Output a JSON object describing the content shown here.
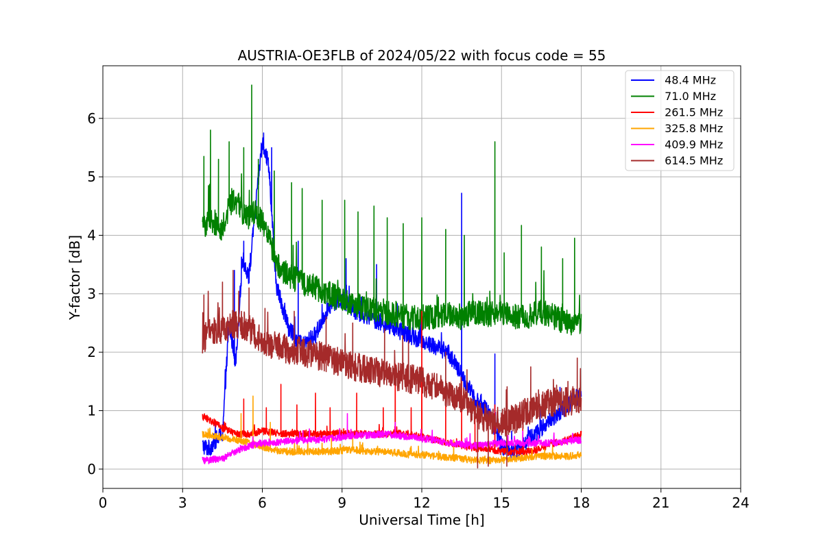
{
  "chart_data": {
    "type": "line",
    "title": "AUSTRIA-OE3FLB of 2024/05/22 with focus code = 55",
    "xlabel": "Universal Time [h]",
    "ylabel": "Y-factor [dB]",
    "xlim": [
      0,
      24
    ],
    "ylim": [
      -0.33,
      6.9
    ],
    "xticks": [
      0,
      3,
      6,
      9,
      12,
      15,
      18,
      21,
      24
    ],
    "yticks": [
      0,
      1,
      2,
      3,
      4,
      5,
      6
    ],
    "grid": true,
    "legend_position": "top-right",
    "series": [
      {
        "name": " 48.4 MHz",
        "color": "#0000ff",
        "x": [
          3.75,
          4.0,
          4.25,
          4.5,
          4.75,
          5.0,
          5.25,
          5.5,
          5.75,
          6.0,
          6.25,
          6.5,
          7.0,
          7.5,
          8.0,
          8.5,
          9.0,
          9.5,
          10.0,
          10.5,
          11.0,
          11.5,
          12.0,
          12.5,
          13.0,
          13.5,
          14.0,
          14.5,
          15.0,
          15.5,
          16.0,
          16.5,
          17.0,
          17.5,
          18.0
        ],
        "values": [
          0.4,
          0.35,
          0.5,
          0.6,
          2.5,
          1.8,
          3.6,
          3.3,
          4.5,
          5.6,
          5.2,
          3.2,
          2.4,
          2.1,
          2.3,
          2.8,
          2.9,
          2.7,
          2.6,
          2.5,
          2.4,
          2.3,
          2.2,
          2.1,
          2.0,
          1.6,
          1.2,
          1.0,
          0.4,
          0.3,
          0.5,
          0.7,
          0.9,
          1.1,
          1.3
        ],
        "spikes": [
          [
            4.95,
            3.4
          ],
          [
            5.3,
            3.9
          ],
          [
            6.05,
            5.75
          ],
          [
            6.35,
            5.5
          ],
          [
            7.35,
            3.9
          ],
          [
            9.15,
            3.6
          ],
          [
            10.3,
            3.5
          ],
          [
            13.5,
            4.72
          ],
          [
            14.75,
            1.97
          ],
          [
            17.2,
            1.4
          ]
        ]
      },
      {
        "name": " 71.0 MHz",
        "color": "#008000",
        "x": [
          3.75,
          4.0,
          4.25,
          4.5,
          4.75,
          5.0,
          5.25,
          5.5,
          5.75,
          6.0,
          6.25,
          6.5,
          7.0,
          7.5,
          8.0,
          8.5,
          9.0,
          9.5,
          10.0,
          10.5,
          11.0,
          11.5,
          12.0,
          12.5,
          13.0,
          13.5,
          14.0,
          14.5,
          15.0,
          15.5,
          16.0,
          16.5,
          17.0,
          17.5,
          18.0
        ],
        "values": [
          4.1,
          4.3,
          4.2,
          4.1,
          4.5,
          4.6,
          4.4,
          4.3,
          4.4,
          4.2,
          4.0,
          3.5,
          3.3,
          3.2,
          3.1,
          3.0,
          2.9,
          2.8,
          2.75,
          2.7,
          2.65,
          2.6,
          2.6,
          2.6,
          2.65,
          2.6,
          2.7,
          2.65,
          2.7,
          2.6,
          2.6,
          2.7,
          2.6,
          2.5,
          2.45
        ],
        "spikes": [
          [
            3.8,
            5.35
          ],
          [
            4.05,
            5.8
          ],
          [
            4.35,
            5.3
          ],
          [
            4.75,
            5.6
          ],
          [
            5.3,
            5.5
          ],
          [
            5.6,
            6.57
          ],
          [
            5.85,
            5.3
          ],
          [
            6.45,
            5.1
          ],
          [
            7.1,
            4.9
          ],
          [
            7.5,
            4.8
          ],
          [
            8.25,
            4.6
          ],
          [
            9.1,
            4.6
          ],
          [
            9.6,
            4.4
          ],
          [
            10.2,
            4.5
          ],
          [
            10.7,
            4.3
          ],
          [
            11.3,
            4.2
          ],
          [
            12.0,
            4.3
          ],
          [
            12.9,
            4.1
          ],
          [
            13.6,
            4.0
          ],
          [
            14.75,
            5.6
          ],
          [
            15.1,
            3.7
          ],
          [
            15.75,
            4.17
          ],
          [
            16.5,
            3.8
          ],
          [
            17.3,
            3.6
          ],
          [
            17.75,
            3.95
          ]
        ]
      },
      {
        "name": " 261.5 MHz",
        "color": "#ff0000",
        "x": [
          3.75,
          4.0,
          4.5,
          5.0,
          5.5,
          6.0,
          6.5,
          7.0,
          7.5,
          8.0,
          8.5,
          9.0,
          9.5,
          10.0,
          10.5,
          11.0,
          11.5,
          12.0,
          12.5,
          13.0,
          13.5,
          14.0,
          14.5,
          15.0,
          15.5,
          16.0,
          16.5,
          17.0,
          17.5,
          18.0
        ],
        "values": [
          0.9,
          0.85,
          0.7,
          0.6,
          0.6,
          0.65,
          0.62,
          0.6,
          0.6,
          0.6,
          0.6,
          0.62,
          0.6,
          0.6,
          0.6,
          0.62,
          0.6,
          0.55,
          0.5,
          0.45,
          0.4,
          0.35,
          0.35,
          0.3,
          0.3,
          0.3,
          0.35,
          0.45,
          0.5,
          0.6
        ],
        "spikes": [
          [
            5.3,
            1.2
          ],
          [
            6.15,
            1.05
          ],
          [
            6.7,
            1.45
          ],
          [
            7.3,
            1.1
          ],
          [
            8.0,
            1.3
          ],
          [
            8.55,
            1.05
          ],
          [
            9.55,
            1.3
          ],
          [
            10.55,
            1.05
          ],
          [
            11.0,
            1.8
          ],
          [
            11.6,
            1.05
          ],
          [
            12.0,
            2.7
          ],
          [
            12.9,
            1.1
          ],
          [
            13.5,
            1.5
          ],
          [
            14.0,
            0.9
          ],
          [
            14.75,
            1.1
          ],
          [
            15.8,
            0.8
          ]
        ]
      },
      {
        "name": " 325.8 MHz",
        "color": "#ffa500",
        "x": [
          3.75,
          4.0,
          4.5,
          5.0,
          5.5,
          6.0,
          6.5,
          7.0,
          7.5,
          8.0,
          8.5,
          9.0,
          9.5,
          10.0,
          10.5,
          11.0,
          11.5,
          12.0,
          12.5,
          13.0,
          13.5,
          14.0,
          14.5,
          15.0,
          15.5,
          16.0,
          16.5,
          17.0,
          17.5,
          18.0
        ],
        "values": [
          0.6,
          0.58,
          0.55,
          0.5,
          0.45,
          0.38,
          0.32,
          0.3,
          0.3,
          0.3,
          0.3,
          0.32,
          0.33,
          0.3,
          0.3,
          0.28,
          0.25,
          0.25,
          0.22,
          0.2,
          0.18,
          0.15,
          0.15,
          0.15,
          0.18,
          0.2,
          0.22,
          0.22,
          0.22,
          0.25
        ],
        "spikes": [
          [
            5.2,
            0.95
          ],
          [
            5.65,
            1.25
          ],
          [
            6.3,
            0.8
          ],
          [
            8.6,
            0.62
          ],
          [
            9.4,
            0.6
          ],
          [
            13.2,
            0.5
          ]
        ]
      },
      {
        "name": " 409.9 MHz",
        "color": "#ff00ff",
        "x": [
          3.75,
          4.0,
          4.5,
          5.0,
          5.5,
          6.0,
          6.5,
          7.0,
          7.5,
          8.0,
          8.5,
          9.0,
          9.5,
          10.0,
          10.5,
          11.0,
          11.5,
          12.0,
          12.5,
          13.0,
          13.5,
          14.0,
          14.5,
          15.0,
          15.5,
          16.0,
          16.5,
          17.0,
          17.5,
          18.0
        ],
        "values": [
          0.15,
          0.15,
          0.18,
          0.3,
          0.4,
          0.45,
          0.45,
          0.48,
          0.5,
          0.5,
          0.52,
          0.55,
          0.58,
          0.58,
          0.6,
          0.58,
          0.55,
          0.52,
          0.5,
          0.45,
          0.42,
          0.4,
          0.42,
          0.45,
          0.45,
          0.45,
          0.45,
          0.45,
          0.48,
          0.5
        ],
        "spikes": [
          [
            9.2,
            0.95
          ],
          [
            11.0,
            0.8
          ],
          [
            15.8,
            0.65
          ]
        ]
      },
      {
        "name": " 614.5 MHz",
        "color": "#a52a2a",
        "x": [
          3.75,
          4.0,
          4.5,
          5.0,
          5.5,
          6.0,
          6.5,
          7.0,
          7.5,
          8.0,
          8.5,
          9.0,
          9.5,
          10.0,
          10.5,
          11.0,
          11.5,
          12.0,
          12.5,
          13.0,
          13.5,
          14.0,
          14.5,
          15.0,
          15.5,
          16.0,
          16.5,
          17.0,
          17.5,
          18.0
        ],
        "values": [
          2.2,
          2.35,
          2.4,
          2.5,
          2.4,
          2.2,
          2.1,
          2.05,
          2.0,
          1.95,
          1.9,
          1.8,
          1.75,
          1.7,
          1.65,
          1.6,
          1.55,
          1.5,
          1.4,
          1.3,
          1.2,
          0.95,
          0.85,
          0.8,
          0.85,
          1.0,
          1.1,
          1.15,
          1.15,
          1.2
        ],
        "spikes": [
          [
            3.8,
            2.98
          ],
          [
            4.5,
            3.2
          ],
          [
            4.9,
            3.4
          ],
          [
            5.5,
            3.1
          ],
          [
            6.1,
            2.75
          ],
          [
            7.2,
            2.7
          ],
          [
            8.4,
            2.6
          ],
          [
            9.4,
            2.5
          ],
          [
            10.6,
            2.4
          ],
          [
            11.5,
            2.2
          ],
          [
            12.9,
            2.0
          ],
          [
            13.7,
            1.7
          ],
          [
            14.1,
            0.02
          ],
          [
            14.5,
            0.05
          ],
          [
            15.2,
            0.05
          ],
          [
            16.1,
            1.75
          ],
          [
            17.5,
            1.5
          ],
          [
            17.85,
            1.9
          ]
        ]
      }
    ]
  }
}
